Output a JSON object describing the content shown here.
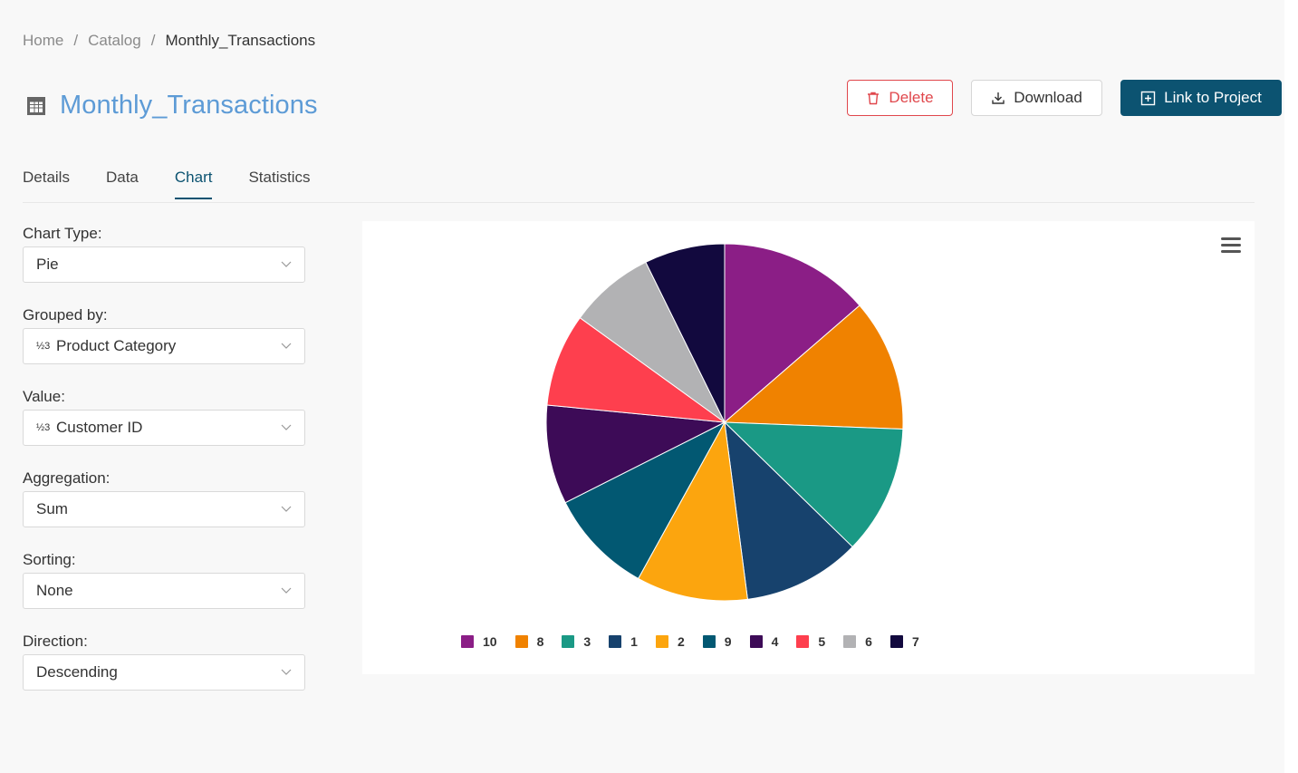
{
  "breadcrumb": {
    "home": "Home",
    "catalog": "Catalog",
    "current": "Monthly_Transactions",
    "separator": "/"
  },
  "header": {
    "title": "Monthly_Transactions",
    "icon": "table-icon"
  },
  "actions": {
    "delete": "Delete",
    "download": "Download",
    "link": "Link to Project"
  },
  "tabs": {
    "details": "Details",
    "data": "Data",
    "chart": "Chart",
    "statistics": "Statistics",
    "active": "Chart"
  },
  "form": {
    "chart_type": {
      "label": "Chart Type:",
      "value": "Pie"
    },
    "grouped_by": {
      "label": "Grouped by:",
      "value": "Product Category",
      "icon": "numeric-icon",
      "icon_glyph": "½3"
    },
    "value": {
      "label": "Value:",
      "value": "Customer ID",
      "icon": "numeric-icon",
      "icon_glyph": "½3"
    },
    "aggregation": {
      "label": "Aggregation:",
      "value": "Sum"
    },
    "sorting": {
      "label": "Sorting:",
      "value": "None"
    },
    "direction": {
      "label": "Direction:",
      "value": "Descending"
    }
  },
  "colors": {
    "accent": "#0c5371",
    "title": "#5d9bd6",
    "danger": "#e0474c"
  },
  "chart_data": {
    "type": "pie",
    "categories": [
      "10",
      "8",
      "3",
      "1",
      "2",
      "9",
      "4",
      "5",
      "6",
      "7"
    ],
    "values": [
      14.6,
      12.8,
      12.5,
      11.4,
      10.8,
      10.2,
      9.6,
      9.0,
      8.3,
      7.8
    ],
    "colors": [
      "#8b1e86",
      "#f08200",
      "#1a9985",
      "#17426d",
      "#fca50e",
      "#025872",
      "#3d0b57",
      "#fe3f4e",
      "#b2b2b4",
      "#12093e"
    ]
  }
}
